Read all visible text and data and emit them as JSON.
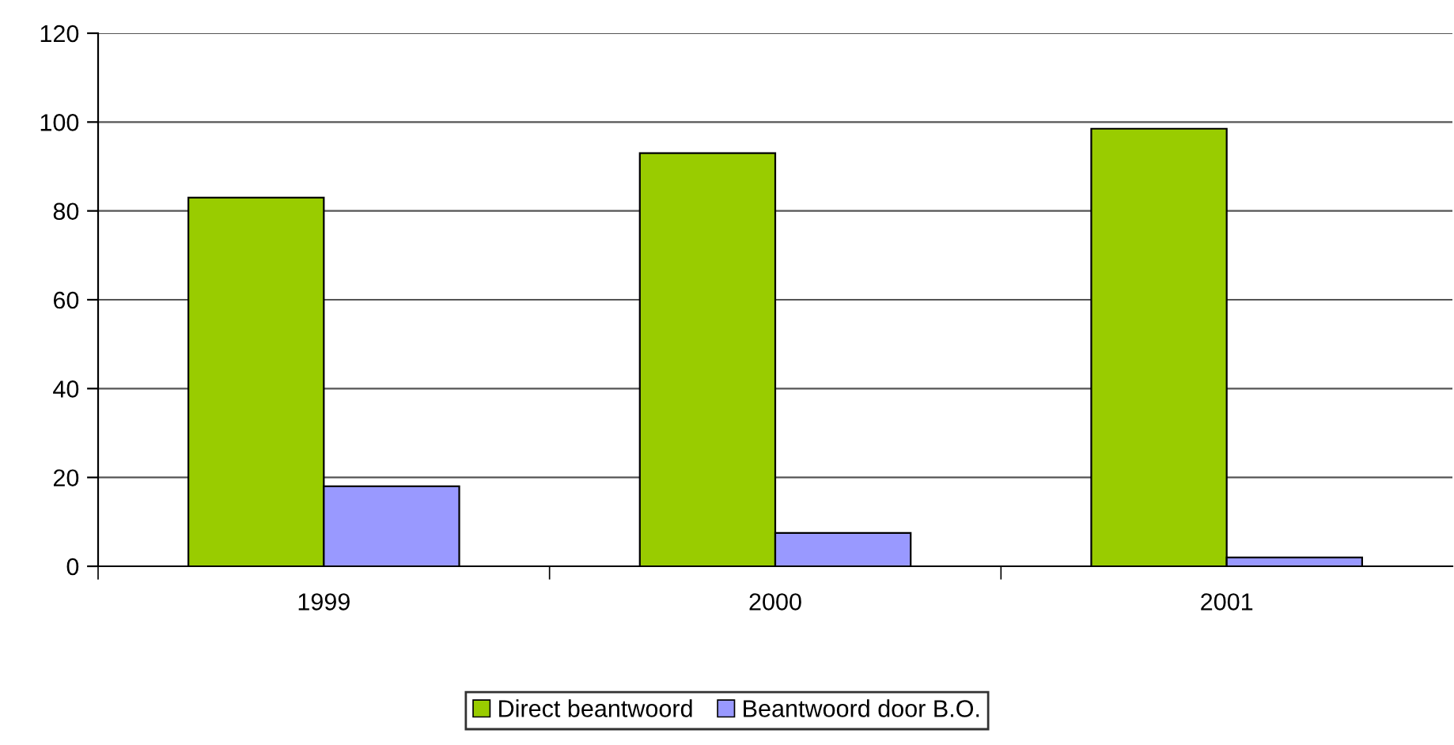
{
  "chart_data": {
    "type": "bar",
    "categories": [
      "1999",
      "2000",
      "2001"
    ],
    "series": [
      {
        "name": "Direct beantwoord",
        "color": "#99cc00",
        "values": [
          83,
          93,
          98.5
        ]
      },
      {
        "name": "Beantwoord door B.O.",
        "color": "#9999ff",
        "values": [
          18,
          7.5,
          2
        ]
      }
    ],
    "ylim": [
      0,
      120
    ],
    "yticks": [
      0,
      20,
      40,
      60,
      80,
      100,
      120
    ],
    "grid": "y",
    "legend": "bottom"
  }
}
